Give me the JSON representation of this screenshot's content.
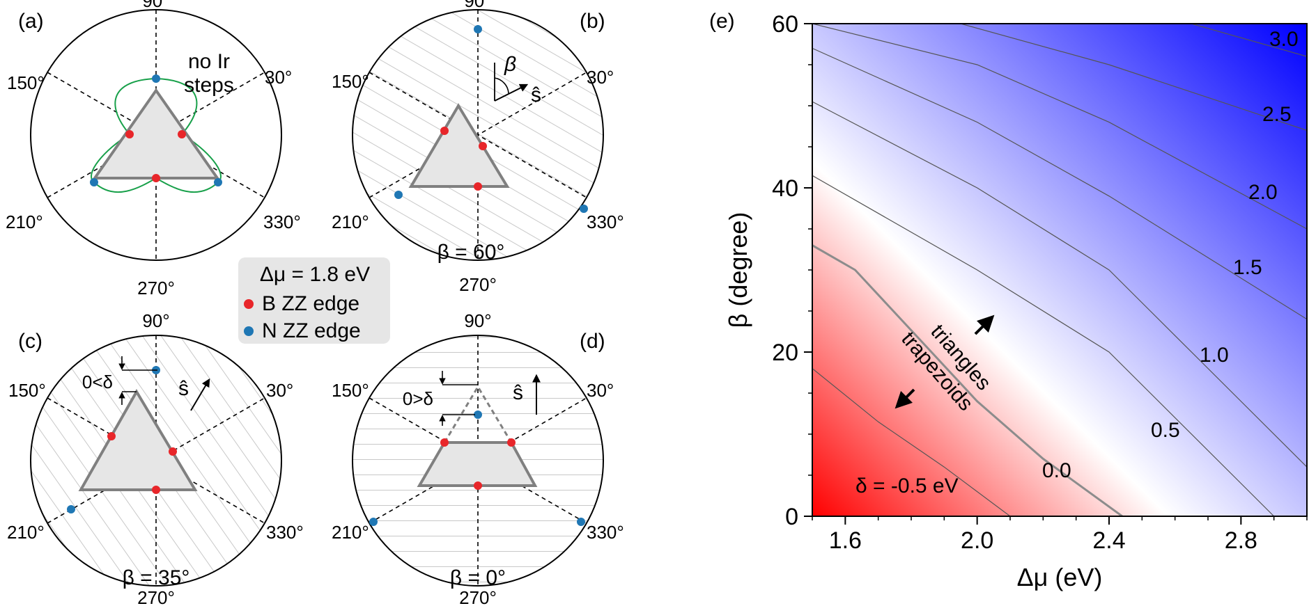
{
  "panels": {
    "a": {
      "label": "(a)",
      "note_line1": "no Ir",
      "note_line2": "steps"
    },
    "b": {
      "label": "(b)",
      "beta_text": "β = 60°",
      "arrow_beta": "β",
      "arrow_s": "ŝ"
    },
    "c": {
      "label": "(c)",
      "beta_text": "β = 35°",
      "delta_text": "0<δ",
      "arrow_s": "ŝ"
    },
    "d": {
      "label": "(d)",
      "beta_text": "β = 0°",
      "delta_text": "0>δ",
      "arrow_s": "ŝ"
    },
    "e": {
      "label": "(e)"
    }
  },
  "angles": [
    "90°",
    "30°",
    "330°",
    "270°",
    "210°",
    "150°"
  ],
  "legend": {
    "title": "Δμ = 1.8 eV",
    "items": [
      {
        "label": "B ZZ edge",
        "color": "#e8262a"
      },
      {
        "label": "N ZZ edge",
        "color": "#1f77b4"
      }
    ]
  },
  "colors": {
    "b_edge": "#e8262a",
    "n_edge": "#1f77b4",
    "loop": "#18a04a",
    "triangle_fill": "#e6e6e6",
    "triangle_edge": "#808080"
  },
  "chart_data": {
    "type": "heatmap",
    "title": "",
    "xlabel": "Δμ (eV)",
    "ylabel": "β (degree)",
    "xlim": [
      1.5,
      3.0
    ],
    "ylim": [
      0,
      60
    ],
    "xticks": [
      "1.6",
      "2.0",
      "2.4",
      "2.8"
    ],
    "yticks": [
      "0",
      "20",
      "40",
      "60"
    ],
    "colorscale": [
      "#ff0000",
      "#ffffff",
      "#0000ff"
    ],
    "value_range": [
      -0.5,
      3.0
    ],
    "contours": [
      {
        "level": "-0.5",
        "label": "δ = -0.5 eV",
        "points": [
          [
            1.5,
            18
          ],
          [
            1.7,
            11.5
          ],
          [
            1.9,
            6
          ],
          [
            2.1,
            0
          ]
        ]
      },
      {
        "level": "0.0",
        "label": "0.0",
        "points": [
          [
            1.5,
            33
          ],
          [
            1.63,
            30
          ],
          [
            2.0,
            14
          ],
          [
            2.2,
            7
          ],
          [
            2.44,
            0
          ]
        ]
      },
      {
        "level": "0.5",
        "label": "0.5",
        "points": [
          [
            1.5,
            41.5
          ],
          [
            2.0,
            30
          ],
          [
            2.4,
            20
          ],
          [
            2.9,
            0
          ]
        ]
      },
      {
        "level": "1.0",
        "label": "1.0",
        "points": [
          [
            1.5,
            50.5
          ],
          [
            2.0,
            40
          ],
          [
            2.4,
            30
          ],
          [
            2.6,
            22
          ],
          [
            3.0,
            6
          ]
        ]
      },
      {
        "level": "1.5",
        "label": "1.5",
        "points": [
          [
            1.5,
            57
          ],
          [
            2.0,
            48
          ],
          [
            2.4,
            39
          ],
          [
            3.0,
            24
          ]
        ]
      },
      {
        "level": "2.0",
        "label": "2.0",
        "points": [
          [
            1.5,
            60
          ],
          [
            2.0,
            55
          ],
          [
            2.4,
            48
          ],
          [
            3.0,
            35
          ]
        ]
      },
      {
        "level": "2.5",
        "label": "2.5",
        "points": [
          [
            1.95,
            60
          ],
          [
            2.4,
            55
          ],
          [
            3.0,
            47
          ]
        ]
      },
      {
        "level": "3.0",
        "label": "3.0",
        "points": [
          [
            2.65,
            60
          ],
          [
            3.0,
            56
          ]
        ]
      }
    ],
    "annotations": [
      "triangles",
      "trapezoids"
    ]
  }
}
